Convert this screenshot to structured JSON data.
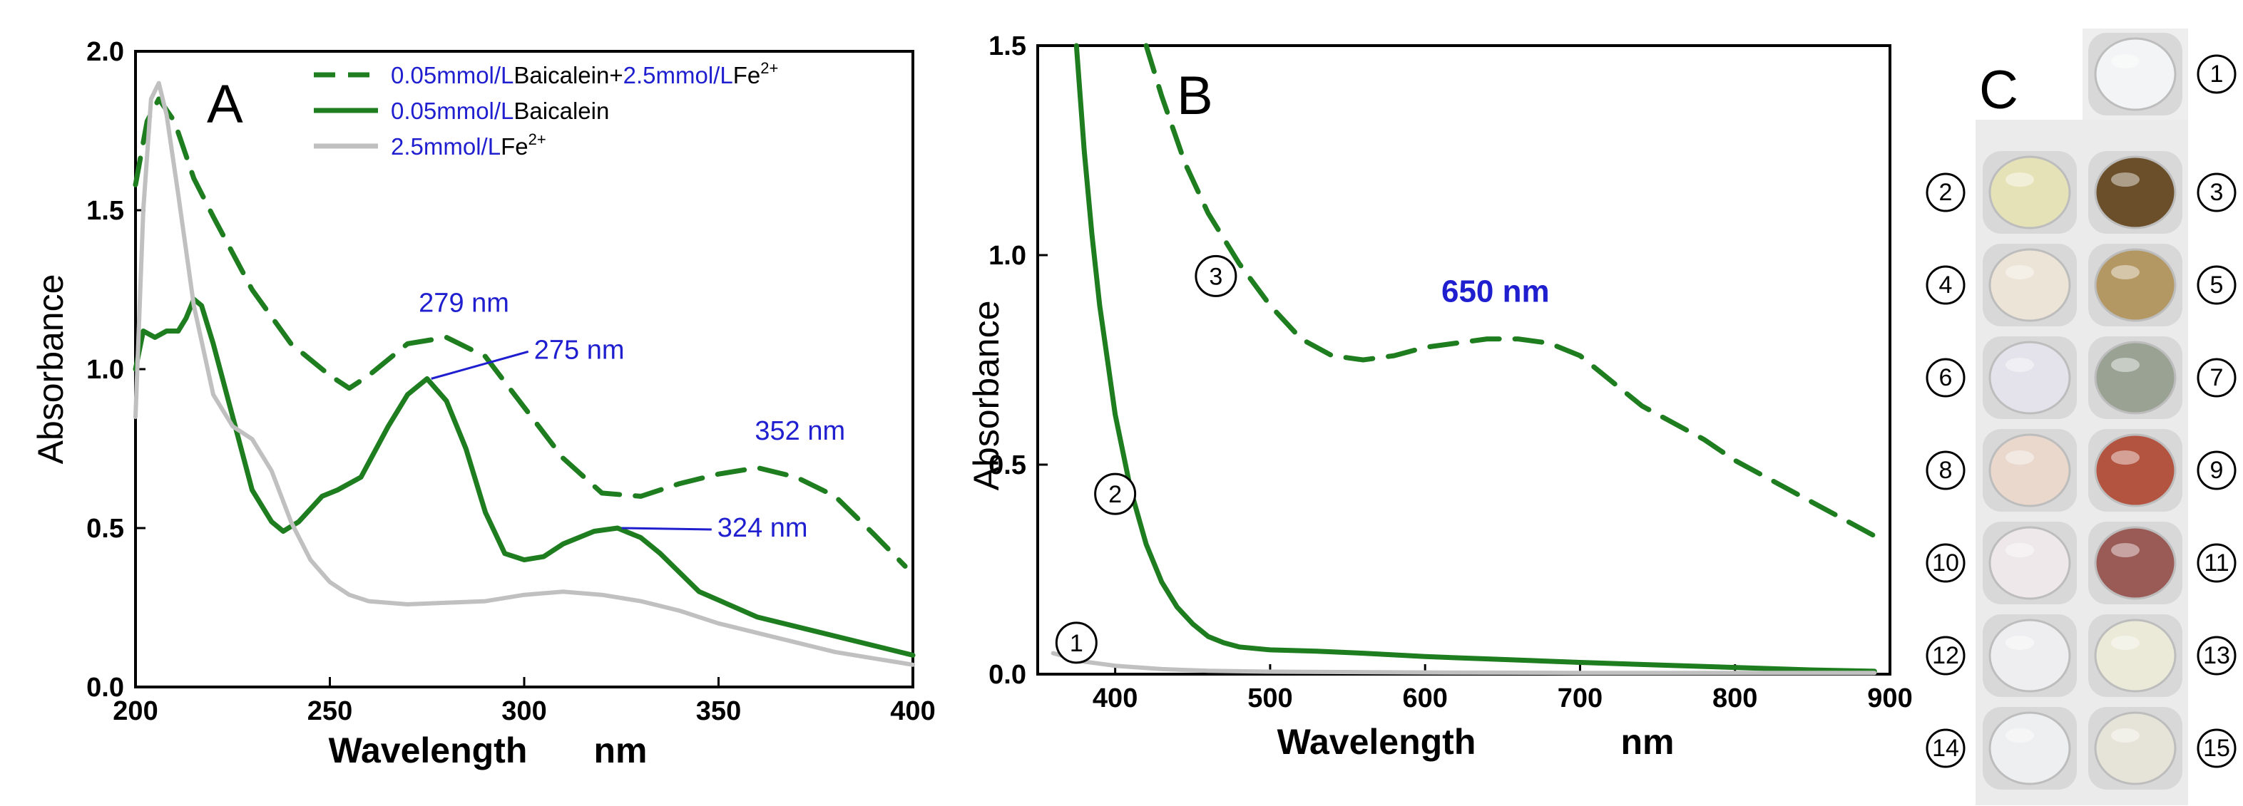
{
  "colors": {
    "complex": "#1e7d1e",
    "baicalein": "#1e7d1e",
    "fe": "#c0c0c0",
    "annotation": "#1f1fd0",
    "axis": "#000000"
  },
  "chart_data": [
    {
      "panel": "A",
      "type": "line",
      "xlabel": "Wavelength",
      "xunit": "nm",
      "ylabel": "Absorbance",
      "xlim": [
        200,
        400
      ],
      "ylim": [
        0,
        2.0
      ],
      "xticks": [
        "200",
        "250",
        "300",
        "350",
        "400"
      ],
      "yticks": [
        "0.0",
        "0.5",
        "1.0",
        "1.5",
        "2.0"
      ],
      "legend": [
        {
          "key": "complex",
          "parts": [
            {
              "text": "0.05mmol/L",
              "color": "#1f1fd0"
            },
            {
              "text": "Baicalein+",
              "color": "#000000"
            },
            {
              "text": "2.5mmol/L",
              "color": "#1f1fd0"
            },
            {
              "text": "Fe",
              "color": "#000000"
            },
            {
              "text": "2+",
              "color": "#000000",
              "sup": true
            }
          ]
        },
        {
          "key": "baicalein",
          "parts": [
            {
              "text": "0.05mmol/L",
              "color": "#1f1fd0"
            },
            {
              "text": "Baicalein",
              "color": "#000000"
            }
          ]
        },
        {
          "key": "fe",
          "parts": [
            {
              "text": "2.5mmol/L",
              "color": "#1f1fd0"
            },
            {
              "text": "Fe",
              "color": "#000000"
            },
            {
              "text": "2+",
              "color": "#000000",
              "sup": true
            }
          ]
        }
      ],
      "series": [
        {
          "name": "complex",
          "style": "dashed",
          "x": [
            200,
            203,
            206,
            210,
            215,
            220,
            230,
            240,
            250,
            255,
            260,
            270,
            280,
            290,
            300,
            310,
            320,
            330,
            340,
            350,
            360,
            370,
            380,
            390,
            398
          ],
          "y": [
            1.58,
            1.78,
            1.85,
            1.78,
            1.6,
            1.48,
            1.25,
            1.08,
            0.98,
            0.94,
            0.98,
            1.08,
            1.1,
            1.04,
            0.88,
            0.72,
            0.61,
            0.6,
            0.64,
            0.67,
            0.69,
            0.66,
            0.6,
            0.48,
            0.38
          ]
        },
        {
          "name": "baicalein",
          "style": "solid",
          "x": [
            200,
            202,
            205,
            208,
            211,
            213,
            215,
            217,
            220,
            225,
            230,
            235,
            238,
            242,
            248,
            252,
            258,
            265,
            270,
            275,
            280,
            285,
            290,
            295,
            300,
            305,
            310,
            318,
            324,
            330,
            335,
            345,
            360,
            380,
            400
          ],
          "y": [
            1.0,
            1.12,
            1.1,
            1.12,
            1.12,
            1.16,
            1.22,
            1.2,
            1.08,
            0.85,
            0.62,
            0.52,
            0.49,
            0.52,
            0.6,
            0.62,
            0.66,
            0.82,
            0.92,
            0.97,
            0.9,
            0.75,
            0.55,
            0.42,
            0.4,
            0.41,
            0.45,
            0.49,
            0.5,
            0.47,
            0.42,
            0.3,
            0.22,
            0.16,
            0.1
          ]
        },
        {
          "name": "fe",
          "style": "solid",
          "x": [
            200,
            202,
            204,
            206,
            208,
            211,
            215,
            220,
            225,
            230,
            235,
            240,
            245,
            250,
            255,
            260,
            270,
            280,
            290,
            300,
            310,
            320,
            330,
            340,
            350,
            360,
            370,
            380,
            390,
            400
          ],
          "y": [
            0.85,
            1.5,
            1.85,
            1.9,
            1.8,
            1.55,
            1.2,
            0.92,
            0.82,
            0.78,
            0.68,
            0.52,
            0.4,
            0.33,
            0.29,
            0.27,
            0.26,
            0.265,
            0.27,
            0.29,
            0.3,
            0.29,
            0.27,
            0.24,
            0.2,
            0.17,
            0.14,
            0.11,
            0.09,
            0.07
          ]
        }
      ],
      "annotations": [
        {
          "text": "279 nm",
          "x": 279,
          "y": 1.1,
          "leader": false
        },
        {
          "text": "275 nm",
          "x": 275,
          "y": 0.97,
          "leader": true
        },
        {
          "text": "352 nm",
          "x": 352,
          "y": 0.67,
          "leader": false
        },
        {
          "text": "324 nm",
          "x": 324,
          "y": 0.5,
          "leader": true
        }
      ]
    },
    {
      "panel": "B",
      "type": "line",
      "xlabel": "Wavelength",
      "xunit": "nm",
      "ylabel": "Absorbance",
      "xlim": [
        350,
        900
      ],
      "ylim": [
        0,
        1.5
      ],
      "xticks": [
        "400",
        "500",
        "600",
        "700",
        "800",
        "900"
      ],
      "yticks": [
        "0.0",
        "0.5",
        "1.0",
        "1.5"
      ],
      "series": [
        {
          "name": "3",
          "style": "dashed",
          "x": [
            420,
            430,
            445,
            460,
            480,
            500,
            520,
            540,
            560,
            580,
            600,
            620,
            640,
            660,
            680,
            700,
            720,
            740,
            760,
            780,
            800,
            820,
            840,
            860,
            880,
            890
          ],
          "y": [
            1.5,
            1.38,
            1.22,
            1.1,
            0.98,
            0.88,
            0.8,
            0.76,
            0.75,
            0.76,
            0.78,
            0.79,
            0.8,
            0.8,
            0.79,
            0.76,
            0.7,
            0.64,
            0.6,
            0.56,
            0.51,
            0.47,
            0.43,
            0.39,
            0.35,
            0.33
          ]
        },
        {
          "name": "2",
          "style": "solid",
          "x": [
            375,
            380,
            385,
            390,
            395,
            400,
            410,
            420,
            430,
            440,
            450,
            460,
            470,
            480,
            500,
            530,
            560,
            600,
            650,
            700,
            750,
            800,
            850,
            890
          ],
          "y": [
            1.5,
            1.25,
            1.05,
            0.88,
            0.75,
            0.62,
            0.44,
            0.31,
            0.22,
            0.16,
            0.12,
            0.09,
            0.075,
            0.065,
            0.058,
            0.055,
            0.05,
            0.042,
            0.035,
            0.028,
            0.022,
            0.016,
            0.01,
            0.007
          ]
        },
        {
          "name": "1",
          "style": "solid",
          "gray": true,
          "x": [
            360,
            380,
            400,
            430,
            460,
            500,
            600,
            700,
            800,
            890
          ],
          "y": [
            0.05,
            0.03,
            0.02,
            0.012,
            0.008,
            0.006,
            0.004,
            0.003,
            0.003,
            0.003
          ]
        }
      ],
      "markers": [
        {
          "label": "1",
          "x": 375,
          "y": 0.075
        },
        {
          "label": "2",
          "x": 400,
          "y": 0.43
        },
        {
          "label": "3",
          "x": 465,
          "y": 0.95
        }
      ],
      "annotations": [
        {
          "text": "650  nm",
          "x": 650,
          "y": 0.8
        }
      ]
    }
  ],
  "panel_c": {
    "letter": "C",
    "wells": [
      {
        "label": "1",
        "color": "#f2f4f5"
      },
      {
        "label": "2",
        "color": "#e6e2b8"
      },
      {
        "label": "3",
        "color": "#6b4f2a"
      },
      {
        "label": "4",
        "color": "#ece4d6"
      },
      {
        "label": "5",
        "color": "#b49863"
      },
      {
        "label": "6",
        "color": "#e4e2ea"
      },
      {
        "label": "7",
        "color": "#9aa294"
      },
      {
        "label": "8",
        "color": "#ead8cc"
      },
      {
        "label": "9",
        "color": "#b25440"
      },
      {
        "label": "10",
        "color": "#efe8ea"
      },
      {
        "label": "11",
        "color": "#9a5a55"
      },
      {
        "label": "12",
        "color": "#eeeef0"
      },
      {
        "label": "13",
        "color": "#ebead8"
      },
      {
        "label": "14",
        "color": "#eeeff0"
      },
      {
        "label": "15",
        "color": "#e6e4d8"
      }
    ]
  }
}
